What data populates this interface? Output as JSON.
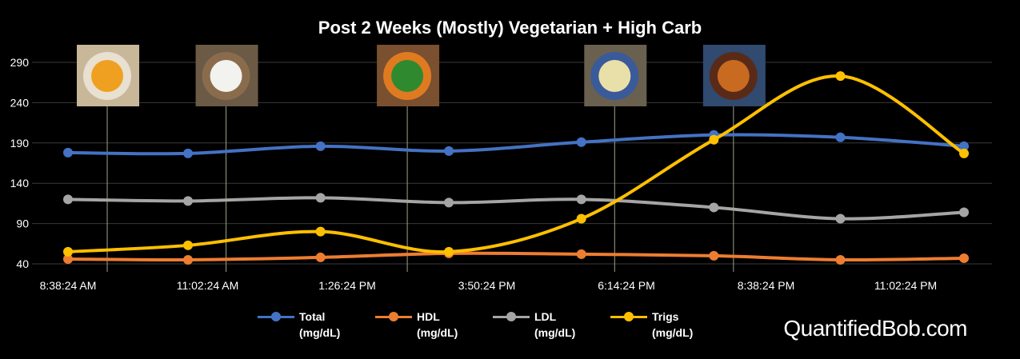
{
  "chart_data": {
    "type": "line",
    "title": "Post 2 Weeks (Mostly) Vegetarian + High Carb",
    "ylim": [
      40,
      290
    ],
    "yticks": [
      40,
      90,
      140,
      190,
      240,
      290
    ],
    "xtick_labels": [
      "8:38:24 AM",
      "11:02:24 AM",
      "1:26:24 PM",
      "3:50:24 PM",
      "6:14:24 PM",
      "8:38:24 PM",
      "11:02:24 PM"
    ],
    "x_hours": [
      8.64,
      10.66,
      12.89,
      15.05,
      17.28,
      19.51,
      21.64,
      23.72
    ],
    "xlim_hours": [
      8.64,
      23.72
    ],
    "grid": true,
    "legend_position": "bottom",
    "series": [
      {
        "name": "Total",
        "unit": "(mg/dL)",
        "color": "#4472C4",
        "values": [
          178,
          177,
          186,
          180,
          191,
          200,
          197,
          186
        ]
      },
      {
        "name": "HDL",
        "unit": "(mg/dL)",
        "color": "#ED7D31",
        "values": [
          46,
          45,
          48,
          53,
          52,
          50,
          45,
          47
        ]
      },
      {
        "name": "LDL",
        "unit": "(mg/dL)",
        "color": "#A5A5A5",
        "values": [
          120,
          118,
          122,
          116,
          120,
          110,
          96,
          104
        ]
      },
      {
        "name": "Trigs",
        "unit": "(mg/dL)",
        "color": "#FFC000",
        "values": [
          55,
          63,
          80,
          55,
          96,
          194,
          273,
          177
        ]
      }
    ],
    "meal_markers": [
      {
        "name": "mango-and-drink-photo",
        "x_hours": 9.3
      },
      {
        "name": "rice-bowl-photo",
        "x_hours": 11.3
      },
      {
        "name": "vegetable-bowl-photo",
        "x_hours": 14.35
      },
      {
        "name": "pasta-plate-photo",
        "x_hours": 17.84
      },
      {
        "name": "curry-plate-photo",
        "x_hours": 19.84
      }
    ]
  },
  "brand": "QuantifiedBob.com"
}
